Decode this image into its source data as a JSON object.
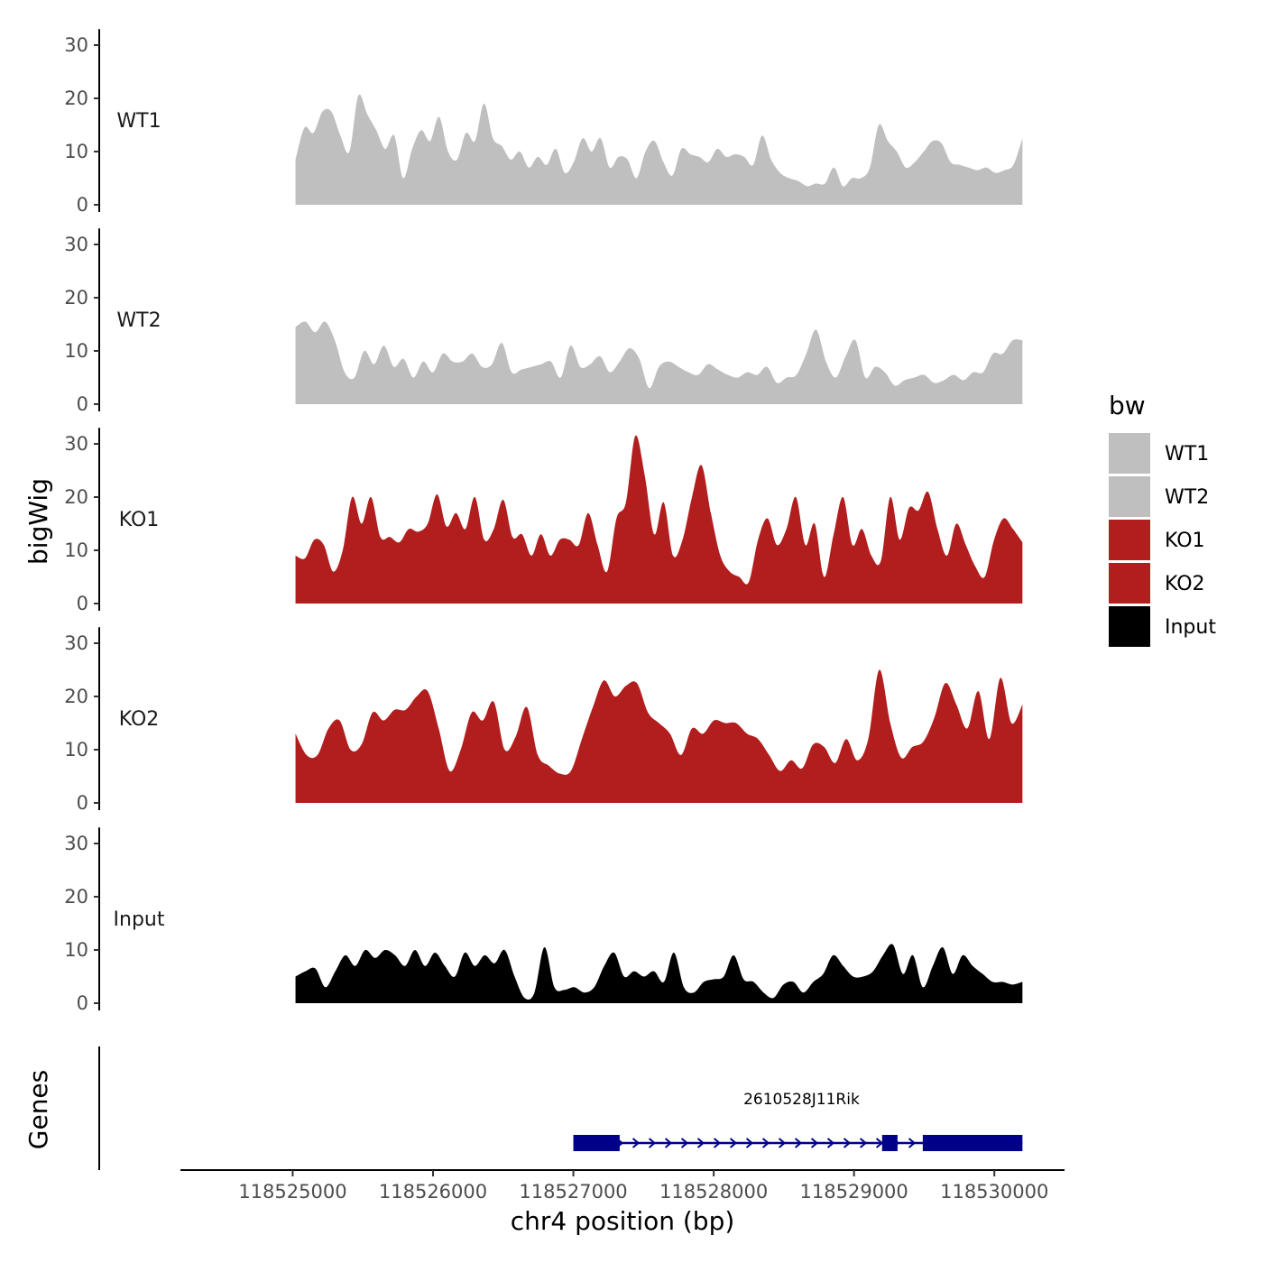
{
  "chart_data": {
    "type": "area",
    "xlabel": "chr4 position (bp)",
    "ylabel": "bigWig",
    "genes_axis_label": "Genes",
    "xlim": [
      118524200,
      118530500
    ],
    "ylim": [
      0,
      33
    ],
    "yticks": [
      0,
      10,
      20,
      30
    ],
    "xticks": [
      118525000,
      118526000,
      118527000,
      118528000,
      118529000,
      118530000
    ],
    "legend": {
      "title": "bw",
      "position": "right",
      "entries": [
        {
          "label": "WT1",
          "color": "#bfbfbf"
        },
        {
          "label": "WT2",
          "color": "#bfbfbf"
        },
        {
          "label": "KO1",
          "color": "#b21e1e"
        },
        {
          "label": "KO2",
          "color": "#b21e1e"
        },
        {
          "label": "Input",
          "color": "#000000"
        }
      ]
    },
    "x_start": 118525020,
    "x_end": 118530200,
    "series": [
      {
        "name": "WT1",
        "color": "#bfbfbf",
        "values": [
          8.5,
          14.5,
          13.5,
          17.5,
          17.5,
          13,
          10,
          20.5,
          17,
          14,
          10.5,
          13,
          5,
          10.5,
          14,
          12,
          16.5,
          10,
          8.5,
          13.5,
          12,
          19,
          12.5,
          11,
          8.5,
          10,
          7,
          9,
          7.5,
          10.5,
          6,
          8,
          12.5,
          10,
          12.5,
          7,
          9,
          8.5,
          5,
          10,
          12,
          8,
          5.5,
          10.5,
          9.5,
          9,
          8,
          10.5,
          9,
          9.5,
          9,
          7.5,
          13,
          8.5,
          6,
          5,
          4.5,
          3.5,
          4,
          4,
          7,
          3.5,
          5,
          5,
          7,
          15,
          12,
          10,
          7,
          8,
          10,
          12,
          11.5,
          8,
          7.5,
          7,
          6.5,
          7,
          6,
          6.5,
          7.5,
          12.5
        ]
      },
      {
        "name": "WT2",
        "color": "#bfbfbf",
        "values": [
          14.5,
          15.5,
          13.5,
          15.5,
          12,
          6,
          5,
          10,
          7.5,
          11,
          7,
          8.5,
          5,
          8,
          6,
          9.5,
          8,
          8,
          9.5,
          7,
          7.5,
          11.5,
          6,
          6.5,
          7,
          7.5,
          8,
          5,
          11,
          7,
          7.5,
          9,
          6,
          8,
          10.5,
          8.5,
          3,
          7,
          8,
          7,
          6,
          5.5,
          7.5,
          6.5,
          5.5,
          5,
          6,
          5.5,
          7,
          4,
          5,
          5.5,
          9.5,
          14,
          8,
          5,
          9,
          12,
          5,
          7,
          6,
          3.5,
          4.5,
          5,
          5.5,
          4,
          4.5,
          5.5,
          4.5,
          6,
          6,
          9.5,
          9.5,
          12,
          12
        ]
      },
      {
        "name": "KO1",
        "color": "#b21e1e",
        "values": [
          9,
          8.5,
          12,
          11,
          6,
          10,
          20,
          15,
          20,
          12.5,
          12.5,
          11.5,
          14,
          13.5,
          15,
          20.5,
          14.5,
          17,
          14,
          20,
          12,
          14,
          19.5,
          12.5,
          13,
          9,
          13,
          9,
          12,
          12,
          11,
          17,
          11,
          6,
          16,
          19,
          31.5,
          24,
          13,
          19,
          9,
          12,
          20,
          26,
          17,
          9,
          6,
          5,
          4,
          12,
          16,
          11,
          14,
          20,
          11,
          15,
          5,
          13,
          20,
          11,
          14,
          9,
          8,
          20,
          12,
          18,
          17.5,
          21,
          14,
          9,
          15,
          11,
          7,
          5,
          12,
          16,
          14,
          11.5
        ]
      },
      {
        "name": "KO2",
        "color": "#b21e1e",
        "values": [
          13,
          9,
          9,
          14,
          15.5,
          10,
          11,
          17,
          15.5,
          17.5,
          17.5,
          20,
          21,
          14,
          6,
          10,
          17,
          15.5,
          19,
          10,
          12.5,
          18,
          9,
          7,
          5.5,
          6,
          12,
          18,
          23,
          20,
          22,
          22.5,
          17,
          15,
          13,
          9,
          14,
          13,
          15.5,
          15,
          15,
          13,
          12,
          9,
          6,
          8,
          6.5,
          11,
          10.5,
          7.5,
          12,
          8,
          12,
          25,
          15,
          8.5,
          10.5,
          11.5,
          16,
          22.5,
          18.5,
          14,
          21,
          12,
          23.5,
          15,
          18.5
        ]
      },
      {
        "name": "Input",
        "color": "#000000",
        "values": [
          5,
          6,
          6.5,
          3,
          6,
          9,
          7,
          10,
          8.5,
          10,
          9,
          7,
          10,
          7,
          9.5,
          7,
          5,
          9.5,
          7,
          9,
          7.5,
          10,
          5,
          1,
          2,
          10.5,
          3,
          2.5,
          3,
          2,
          3,
          7,
          9.5,
          5,
          6,
          5,
          6,
          4,
          9.5,
          3,
          2,
          4,
          4.5,
          5,
          9,
          4.5,
          4,
          2,
          1,
          3.5,
          4,
          2,
          4,
          5.5,
          9,
          7,
          5,
          5,
          6,
          9,
          11,
          5.5,
          9,
          3,
          7,
          10.5,
          5.5,
          9,
          7,
          5.5,
          4,
          4,
          3.5,
          4
        ]
      }
    ],
    "gene": {
      "name": "2610528J11Rik",
      "color": "#00008b",
      "start": 118527000,
      "end": 118530200,
      "strand": "+",
      "exons": [
        [
          118527000,
          118527330
        ],
        [
          118529200,
          118529310
        ],
        [
          118529490,
          118530200
        ]
      ]
    }
  }
}
